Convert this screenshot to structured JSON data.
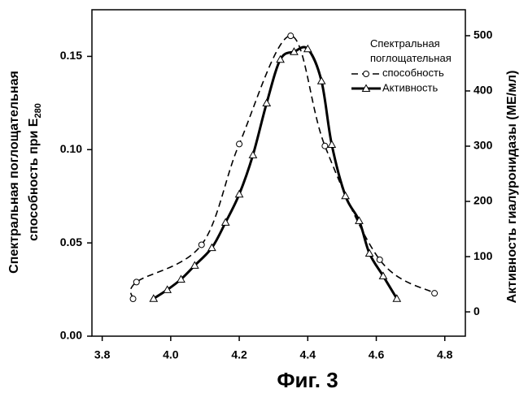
{
  "chart_data": {
    "type": "line",
    "ylabel_lines": [
      "Спектральная поглощательная",
      "способность при E"
    ],
    "ylabel_subscript": "280",
    "y2label": "Активность гиалуронидазы (МЕ/мл)",
    "caption": "Фиг. 3",
    "xlim": [
      3.77,
      4.86
    ],
    "xticks": [
      3.8,
      {
        "value": 4,
        "label": "4.0"
      },
      4.2,
      4.4,
      4.6,
      4.8
    ],
    "ylim": [
      0,
      0.175
    ],
    "yticks": [
      {
        "value": 0,
        "label": "0.00"
      },
      {
        "value": 0.05,
        "label": "0.05"
      },
      {
        "value": 0.1,
        "label": "0.10"
      },
      {
        "value": 0.15,
        "label": "0.15"
      }
    ],
    "y2lim": [
      -44,
      547
    ],
    "y2ticks": [
      0,
      100,
      200,
      300,
      400,
      500
    ],
    "legend": "upper right",
    "series": [
      {
        "name": "Спектральная поглощательная способность",
        "color": "#000000",
        "marker": "circle",
        "dashed": true,
        "x": [
          3.89,
          3.9,
          4.09,
          4.2,
          4.35,
          4.45,
          4.61,
          4.77
        ],
        "values": [
          0.02,
          0.029,
          0.049,
          0.103,
          0.161,
          0.102,
          0.041,
          0.023
        ]
      },
      {
        "name": "Активность",
        "color": "#000000",
        "marker": "triangle",
        "dashed": false,
        "axis": "y2",
        "x": [
          3.95,
          3.99,
          4.03,
          4.07,
          4.12,
          4.16,
          4.2,
          4.24,
          4.28,
          4.32,
          4.36,
          4.4,
          4.44,
          4.47,
          4.51,
          4.55,
          4.58,
          4.62,
          4.66
        ],
        "values": [
          24,
          40,
          59,
          84,
          116,
          162,
          213,
          284,
          378,
          457,
          471,
          476,
          418,
          303,
          210,
          165,
          106,
          65,
          24
        ]
      }
    ]
  }
}
